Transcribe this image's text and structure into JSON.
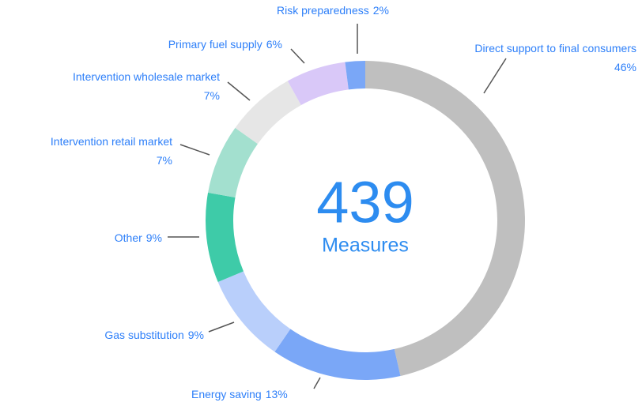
{
  "chart_data": {
    "type": "donut",
    "categories": [
      "Direct support to final consumers",
      "Energy saving",
      "Gas substitution",
      "Other",
      "Intervention retail market",
      "Intervention wholesale market",
      "Primary fuel supply",
      "Risk preparedness"
    ],
    "values": [
      46,
      13,
      9,
      9,
      7,
      7,
      6,
      2
    ],
    "value_labels": [
      "46%",
      "13%",
      "9%",
      "9%",
      "7%",
      "7%",
      "6%",
      "2%"
    ],
    "colors": [
      "#bfbfbf",
      "#7aa7f7",
      "#b9cffb",
      "#3ecba8",
      "#a3e0cf",
      "#e6e6e6",
      "#d9c8f8",
      "#7aa7f7"
    ],
    "center_value": "439",
    "center_label": "Measures"
  }
}
